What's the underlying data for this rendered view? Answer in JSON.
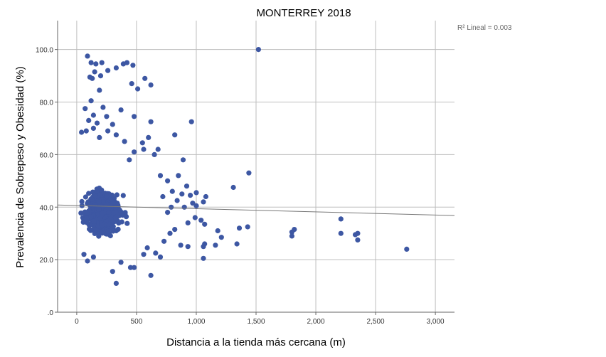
{
  "chart_data": {
    "type": "scatter",
    "title": "MONTERREY 2018",
    "xlabel": "Distancia a la tienda más cercana (m)",
    "ylabel": "Prevalencia de Sobrepeso y Obesidad (%)",
    "xlim": [
      -160,
      3160
    ],
    "ylim": [
      0,
      111
    ],
    "x_ticks": [
      0,
      500,
      1000,
      1500,
      2000,
      2500,
      3000
    ],
    "x_tick_labels": [
      "0",
      "500",
      "1,000",
      "1,500",
      "2,000",
      "2,500",
      "3,000"
    ],
    "y_ticks": [
      0,
      20,
      40,
      60,
      80,
      100
    ],
    "y_tick_labels": [
      ".0",
      "20.0",
      "40.0",
      "60.0",
      "80.0",
      "100.0"
    ],
    "grid": true,
    "marker_color": "#3d57a3",
    "fit_line": {
      "type": "linear",
      "annotation": "R² Lineal = 0.003",
      "points": [
        [
          -160,
          40.8
        ],
        [
          3160,
          36.8
        ]
      ],
      "color": "#777777"
    },
    "cluster": {
      "n": 1400,
      "x_range": [
        15,
        560
      ],
      "y_range": [
        19,
        60
      ],
      "description": "dense mass of points"
    },
    "points": [
      [
        90,
        97.5
      ],
      [
        120,
        95
      ],
      [
        160,
        94.5
      ],
      [
        210,
        95
      ],
      [
        260,
        92
      ],
      [
        330,
        93
      ],
      [
        390,
        94.5
      ],
      [
        420,
        95
      ],
      [
        470,
        94
      ],
      [
        1520,
        100
      ],
      [
        150,
        91.5
      ],
      [
        200,
        90
      ],
      [
        110,
        89.5
      ],
      [
        130,
        89
      ],
      [
        570,
        89
      ],
      [
        460,
        87
      ],
      [
        620,
        86.5
      ],
      [
        510,
        85
      ],
      [
        190,
        84.5
      ],
      [
        120,
        80.5
      ],
      [
        220,
        78
      ],
      [
        370,
        77
      ],
      [
        70,
        77.5
      ],
      [
        140,
        75
      ],
      [
        250,
        74.5
      ],
      [
        480,
        74.5
      ],
      [
        960,
        72.5
      ],
      [
        620,
        72.5
      ],
      [
        100,
        73
      ],
      [
        170,
        72
      ],
      [
        300,
        71.5
      ],
      [
        80,
        69
      ],
      [
        140,
        70
      ],
      [
        260,
        69
      ],
      [
        330,
        67.5
      ],
      [
        600,
        66.5
      ],
      [
        820,
        67.5
      ],
      [
        40,
        68.5
      ],
      [
        190,
        66.5
      ],
      [
        400,
        65
      ],
      [
        550,
        64.5
      ],
      [
        680,
        62
      ],
      [
        890,
        58
      ],
      [
        920,
        48
      ],
      [
        1000,
        45.5
      ],
      [
        950,
        44.5
      ],
      [
        1080,
        44
      ],
      [
        970,
        41.5
      ],
      [
        1060,
        42
      ],
      [
        1000,
        40.5
      ],
      [
        900,
        40
      ],
      [
        990,
        36
      ],
      [
        1040,
        35
      ],
      [
        930,
        34
      ],
      [
        1070,
        33.5
      ],
      [
        1180,
        31
      ],
      [
        1210,
        28.5
      ],
      [
        1360,
        32
      ],
      [
        1430,
        32.5
      ],
      [
        1070,
        26
      ],
      [
        1060,
        25
      ],
      [
        870,
        25.5
      ],
      [
        930,
        25
      ],
      [
        1060,
        20.5
      ],
      [
        1160,
        25.5
      ],
      [
        1340,
        26
      ],
      [
        1310,
        47.5
      ],
      [
        1440,
        53
      ],
      [
        1820,
        31.5
      ],
      [
        1800,
        30.5
      ],
      [
        1800,
        29
      ],
      [
        2210,
        35.5
      ],
      [
        2210,
        30
      ],
      [
        2330,
        29.5
      ],
      [
        2350,
        30
      ],
      [
        2350,
        27.5
      ],
      [
        2760,
        24
      ],
      [
        330,
        11
      ],
      [
        620,
        14
      ],
      [
        300,
        15.5
      ],
      [
        450,
        17
      ],
      [
        480,
        17
      ],
      [
        370,
        19
      ],
      [
        90,
        19.5
      ],
      [
        60,
        22
      ],
      [
        140,
        21
      ],
      [
        560,
        22
      ],
      [
        700,
        21
      ],
      [
        660,
        22.5
      ],
      [
        590,
        24.5
      ],
      [
        730,
        27
      ],
      [
        780,
        30
      ],
      [
        820,
        31.5
      ],
      [
        760,
        38
      ],
      [
        790,
        40
      ],
      [
        840,
        42.5
      ],
      [
        720,
        44
      ],
      [
        800,
        46
      ],
      [
        760,
        50
      ],
      [
        700,
        52
      ],
      [
        850,
        52
      ],
      [
        880,
        45
      ],
      [
        650,
        60
      ],
      [
        560,
        62
      ],
      [
        480,
        61
      ],
      [
        440,
        58
      ]
    ]
  }
}
